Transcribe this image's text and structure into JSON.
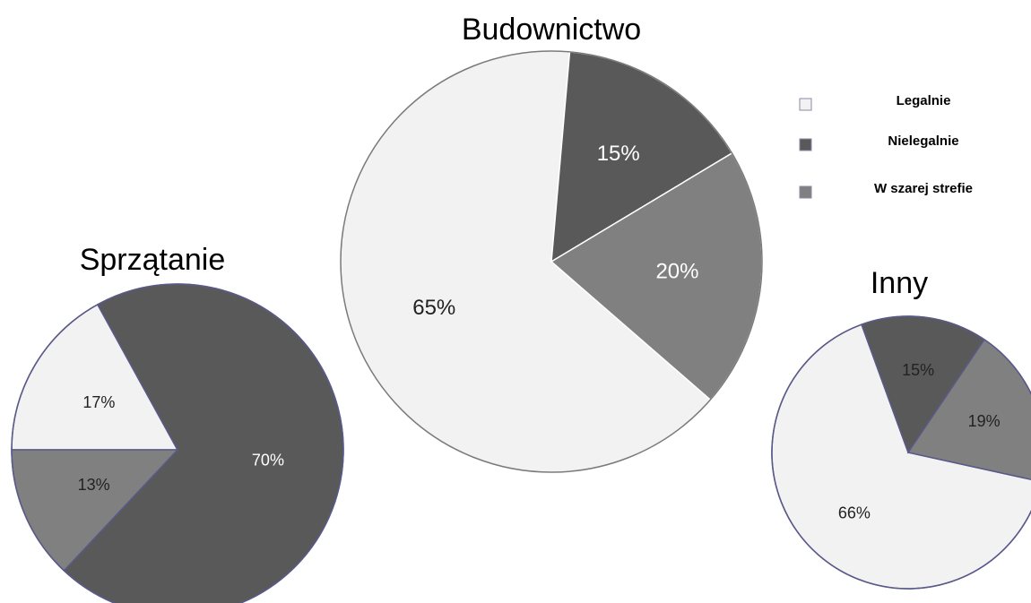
{
  "chart_data": [
    {
      "type": "pie",
      "title": "Budownictwo",
      "values": [
        65,
        15,
        20
      ],
      "value_labels": [
        "65%",
        "15%",
        "20%"
      ],
      "colors": [
        "#f2f2f2",
        "#595959",
        "#808080"
      ],
      "label_colors": [
        "#222222",
        "#ffffff",
        "#ffffff"
      ]
    },
    {
      "type": "pie",
      "title": "Sprzątanie",
      "values": [
        17,
        70,
        13
      ],
      "value_labels": [
        "17%",
        "70%",
        "13%"
      ],
      "colors": [
        "#f2f2f2",
        "#595959",
        "#808080"
      ],
      "label_colors": [
        "#222222",
        "#ffffff",
        "#222222"
      ]
    },
    {
      "type": "pie",
      "title": "Inny",
      "values": [
        66,
        15,
        19
      ],
      "value_labels": [
        "66%",
        "15%",
        "19%"
      ],
      "colors": [
        "#f2f2f2",
        "#595959",
        "#808080"
      ],
      "label_colors": [
        "#222222",
        "#222222",
        "#222222"
      ]
    }
  ],
  "legend": [
    {
      "name": "Legalnie",
      "color": "#f2f2f2"
    },
    {
      "name": "Nielegalnie",
      "color": "#595959"
    },
    {
      "name": "W szarej strefie",
      "color": "#808080"
    }
  ]
}
